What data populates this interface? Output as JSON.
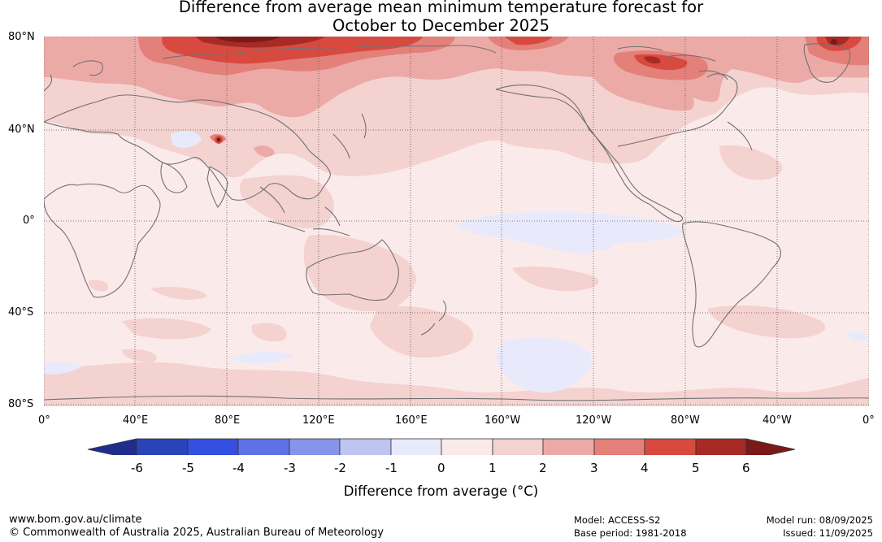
{
  "title": {
    "line1": "Difference from average mean minimum temperature forecast for",
    "line2": "October to December 2025"
  },
  "map": {
    "lat_labels": [
      "80°N",
      "40°N",
      "0°",
      "40°S",
      "80°S"
    ],
    "lon_labels": [
      "0°",
      "40°E",
      "80°E",
      "120°E",
      "160°E",
      "160°W",
      "120°W",
      "80°W",
      "40°W",
      "0°"
    ]
  },
  "colorbar": {
    "ticks": [
      "-6",
      "-5",
      "-4",
      "-3",
      "-2",
      "-1",
      "0",
      "1",
      "2",
      "3",
      "4",
      "5",
      "6"
    ],
    "label": "Difference from average (°C)",
    "colors": [
      "#1f2e8c",
      "#2a43b8",
      "#3550e0",
      "#5d73e4",
      "#8694ea",
      "#bec5f2",
      "#e8eafc",
      "#fbeaea",
      "#f4d2d0",
      "#ecaaa6",
      "#e4807a",
      "#d84a40",
      "#a72a25",
      "#7a1a18"
    ]
  },
  "footer": {
    "website": "www.bom.gov.au/climate",
    "copyright": "© Commonwealth of Australia 2025, Australian Bureau of Meteorology",
    "model": "Model: ACCESS-S2",
    "base_period": "Base period: 1981-2018",
    "model_run": "Model run: 08/09/2025",
    "issued": "Issued: 11/09/2025"
  }
}
